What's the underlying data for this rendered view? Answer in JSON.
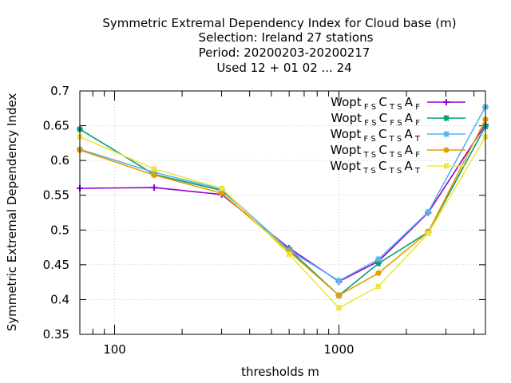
{
  "chart_data": {
    "type": "line",
    "title_lines": [
      "Symmetric Extremal Dependency Index  for Cloud base (m)",
      "Selection: Ireland     27 stations",
      "Period: 20200203-20200217",
      "Used  12 + 01 02 ... 24"
    ],
    "xlabel": "thresholds m",
    "ylabel": "Symmetric Extremal Dependency Index",
    "x_scale": "log",
    "xlim": [
      70,
      4500
    ],
    "ylim": [
      0.35,
      0.7
    ],
    "x_tick_labels": [
      {
        "value": 100,
        "label": "100"
      },
      {
        "value": 1000,
        "label": "1000"
      }
    ],
    "y_ticks": [
      0.35,
      0.4,
      0.45,
      0.5,
      0.55,
      0.6,
      0.65,
      0.7
    ],
    "y_tick_labels": [
      "0.35",
      "0.4",
      "0.45",
      "0.5",
      "0.55",
      "0.6",
      "0.65",
      "0.7"
    ],
    "grid": true,
    "legend_position": "top-right",
    "x": [
      70,
      150,
      300,
      600,
      1000,
      1500,
      2500,
      4500
    ],
    "series": [
      {
        "name": "Wopt FS C TS A F",
        "legend": {
          "base": "Wopt",
          "parts": [
            {
              "t": "FS",
              "sub": true
            },
            {
              "t": "C",
              "sub": false
            },
            {
              "t": "TS",
              "sub": true
            },
            {
              "t": "A",
              "sub": false
            },
            {
              "t": "F",
              "sub": true
            }
          ]
        },
        "color": "#9400d3",
        "marker": "plus",
        "values": [
          0.56,
          0.561,
          0.551,
          0.474,
          0.426,
          0.455,
          0.525,
          0.652
        ]
      },
      {
        "name": "Wopt FS C FS A F",
        "legend": {
          "base": "Wopt",
          "parts": [
            {
              "t": "FS",
              "sub": true
            },
            {
              "t": "C",
              "sub": false
            },
            {
              "t": "FS",
              "sub": true
            },
            {
              "t": "A",
              "sub": false
            },
            {
              "t": "F",
              "sub": true
            }
          ]
        },
        "color": "#009e73",
        "marker": "star",
        "values": [
          0.645,
          0.58,
          0.557,
          0.472,
          0.406,
          0.452,
          0.497,
          0.649
        ]
      },
      {
        "name": "Wopt FS C TS A T",
        "legend": {
          "base": "Wopt",
          "parts": [
            {
              "t": "FS",
              "sub": true
            },
            {
              "t": "C",
              "sub": false
            },
            {
              "t": "TS",
              "sub": true
            },
            {
              "t": "A",
              "sub": false
            },
            {
              "t": "T",
              "sub": true
            }
          ]
        },
        "color": "#56b4e9",
        "marker": "star",
        "values": [
          0.616,
          0.583,
          0.559,
          0.471,
          0.427,
          0.458,
          0.526,
          0.677
        ]
      },
      {
        "name": "Wopt TS C TS A F",
        "legend": {
          "base": "Wopt",
          "parts": [
            {
              "t": "TS",
              "sub": true
            },
            {
              "t": "C",
              "sub": false
            },
            {
              "t": "TS",
              "sub": true
            },
            {
              "t": "A",
              "sub": false
            },
            {
              "t": "F",
              "sub": true
            }
          ]
        },
        "color": "#e69f00",
        "marker": "circle",
        "values": [
          0.615,
          0.579,
          0.553,
          0.469,
          0.406,
          0.438,
          0.497,
          0.659
        ]
      },
      {
        "name": "Wopt TS C TS A T",
        "legend": {
          "base": "Wopt",
          "parts": [
            {
              "t": "TS",
              "sub": true
            },
            {
              "t": "C",
              "sub": false
            },
            {
              "t": "TS",
              "sub": true
            },
            {
              "t": "A",
              "sub": false
            },
            {
              "t": "T",
              "sub": true
            }
          ]
        },
        "color": "#f0e442",
        "marker": "square",
        "values": [
          0.634,
          0.588,
          0.56,
          0.465,
          0.388,
          0.419,
          0.495,
          0.634
        ]
      }
    ]
  }
}
